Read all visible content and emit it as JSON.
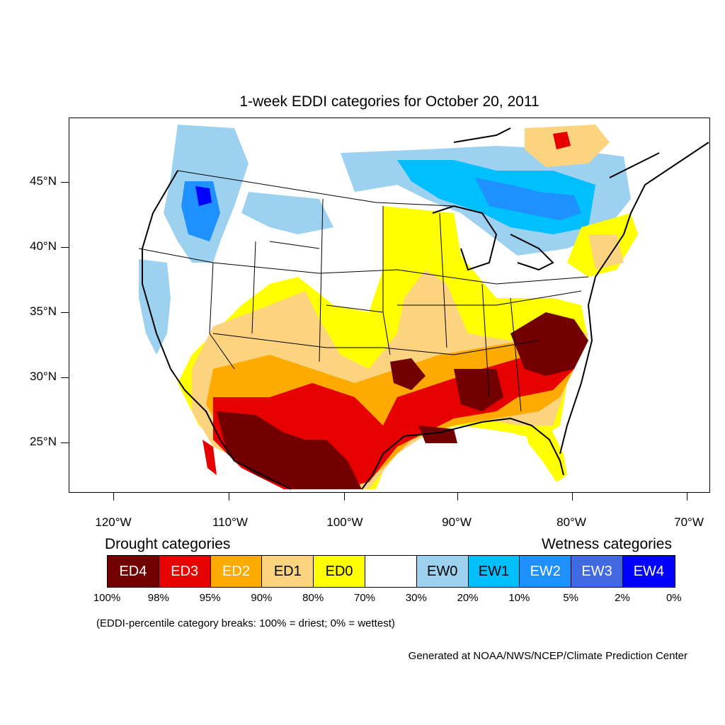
{
  "title": "1-week EDDI categories for October 20, 2011",
  "lat_labels": [
    "45°N",
    "40°N",
    "35°N",
    "30°N",
    "25°N"
  ],
  "lon_labels": [
    "120°W",
    "110°W",
    "100°W",
    "90°W",
    "80°W",
    "70°W"
  ],
  "legend": {
    "drought_heading": "Drought categories",
    "wetness_heading": "Wetness categories",
    "categories": [
      {
        "label": "ED4",
        "color": "#730000",
        "text_color": "#ffffff"
      },
      {
        "label": "ED3",
        "color": "#e60000",
        "text_color": "#ffffff"
      },
      {
        "label": "ED2",
        "color": "#ffaa00",
        "text_color": "#ffffff"
      },
      {
        "label": "ED1",
        "color": "#fcd37f",
        "text_color": "#000000"
      },
      {
        "label": "ED0",
        "color": "#ffff00",
        "text_color": "#000000"
      },
      {
        "label": "",
        "color": "#ffffff",
        "text_color": "#000000"
      },
      {
        "label": "EW0",
        "color": "#9dd1f0",
        "text_color": "#000000"
      },
      {
        "label": "EW1",
        "color": "#00bfff",
        "text_color": "#000000"
      },
      {
        "label": "EW2",
        "color": "#1e90ff",
        "text_color": "#ffffff"
      },
      {
        "label": "EW3",
        "color": "#4169e1",
        "text_color": "#ffffff"
      },
      {
        "label": "EW4",
        "color": "#0000ff",
        "text_color": "#ffffff"
      }
    ],
    "breaks": [
      "100%",
      "98%",
      "95%",
      "90%",
      "80%",
      "70%",
      "30%",
      "20%",
      "10%",
      "5%",
      "2%",
      "0%"
    ]
  },
  "breaks_note": "(EDDI-percentile category breaks: 100% = driest; 0% = wettest)",
  "credit": "Generated at NOAA/NWS/NCEP/Climate Prediction Center"
}
